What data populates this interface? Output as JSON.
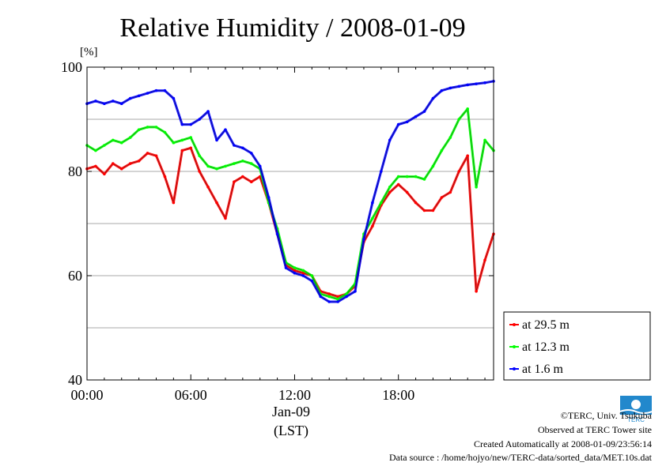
{
  "chart_data": {
    "type": "line",
    "title": "Relative Humidity / 2008-01-09",
    "ylabel": "[%]",
    "xlabel_date": "Jan-09",
    "xlabel_tz": "(LST)",
    "x_unit": "hour (LST)",
    "xlim": [
      0,
      23.5
    ],
    "ylim": [
      40,
      100
    ],
    "x_ticks": [
      0,
      6,
      12,
      18
    ],
    "x_tick_labels": [
      "00:00",
      "06:00",
      "12:00",
      "18:00"
    ],
    "y_ticks": [
      40,
      60,
      80,
      100
    ],
    "y_tick_labels": [
      "40",
      "60",
      "80",
      "100"
    ],
    "grid": true,
    "legend_position": "right, below plot",
    "series": [
      {
        "name": "at 29.5 m",
        "color": "#ff0000",
        "x": [
          0,
          0.5,
          1,
          1.5,
          2,
          2.5,
          3,
          3.5,
          4,
          4.5,
          5,
          5.5,
          6,
          6.5,
          7,
          7.5,
          8,
          8.5,
          9,
          9.5,
          10,
          10.5,
          11,
          11.5,
          12,
          12.5,
          13,
          13.5,
          14,
          14.5,
          15,
          15.5,
          16,
          16.5,
          17,
          17.5,
          18,
          18.5,
          19,
          19.5,
          20,
          20.5,
          21,
          21.5,
          22,
          22.5,
          23,
          23.5
        ],
        "values": [
          80.5,
          81,
          79.5,
          81.5,
          80.5,
          81.5,
          82,
          83.5,
          83,
          79,
          74,
          84,
          84.5,
          80,
          77,
          74,
          71,
          78,
          79,
          78,
          79,
          74,
          68,
          62,
          61,
          60.5,
          60,
          57,
          56.5,
          56,
          56.5,
          58,
          66.5,
          69.5,
          73.5,
          76,
          77.5,
          76,
          74,
          72.5,
          72.5,
          75,
          76,
          80,
          83,
          57,
          63,
          68
        ]
      },
      {
        "name": "at 12.3 m",
        "color": "#00ff00",
        "x": [
          0,
          0.5,
          1,
          1.5,
          2,
          2.5,
          3,
          3.5,
          4,
          4.5,
          5,
          5.5,
          6,
          6.5,
          7,
          7.5,
          8,
          8.5,
          9,
          9.5,
          10,
          10.5,
          11,
          11.5,
          12,
          12.5,
          13,
          13.5,
          14,
          14.5,
          15,
          15.5,
          16,
          16.5,
          17,
          17.5,
          18,
          18.5,
          19,
          19.5,
          20,
          20.5,
          21,
          21.5,
          22,
          22.5,
          23,
          23.5
        ],
        "values": [
          85,
          84,
          85,
          86,
          85.5,
          86.5,
          88,
          88.5,
          88.5,
          87.5,
          85.5,
          86,
          86.5,
          83,
          81,
          80.5,
          81,
          81.5,
          82,
          81.5,
          80.5,
          74,
          69,
          62.5,
          61.5,
          61,
          60,
          56.5,
          56,
          55.5,
          56.5,
          58.5,
          68,
          71,
          74,
          77,
          79,
          79,
          79,
          78.5,
          81,
          84,
          86.5,
          90,
          92,
          77,
          86,
          84
        ]
      },
      {
        "name": "at 1.6 m",
        "color": "#0000ff",
        "x": [
          0,
          0.5,
          1,
          1.5,
          2,
          2.5,
          3,
          3.5,
          4,
          4.5,
          5,
          5.5,
          6,
          6.5,
          7,
          7.5,
          8,
          8.5,
          9,
          9.5,
          10,
          10.5,
          11,
          11.5,
          12,
          12.5,
          13,
          13.5,
          14,
          14.5,
          15,
          15.5,
          16,
          16.5,
          17,
          17.5,
          18,
          18.5,
          19,
          19.5,
          20,
          20.5,
          21,
          21.5,
          22,
          22.5,
          23,
          23.5
        ],
        "values": [
          93,
          93.5,
          93,
          93.5,
          93,
          94,
          94.5,
          95,
          95.5,
          95.5,
          94,
          89,
          89,
          90,
          91.5,
          86,
          88,
          85,
          84.5,
          83.5,
          81,
          75,
          68,
          61.5,
          60.5,
          60,
          59,
          56,
          55,
          55,
          56,
          57,
          67,
          74,
          80,
          86,
          89,
          89.5,
          90.5,
          91.5,
          94,
          95.5,
          96,
          96.3,
          96.6,
          96.8,
          97,
          97.3
        ]
      }
    ]
  },
  "footer": {
    "copyright": "©TERC, Univ. Tsukuba",
    "observed": "Observed at TERC Tower site",
    "created": "Created Automatically at 2008-01-09/23:56:14",
    "source": "Data source : /home/hojyo/new/TERC-data/sorted_data/MET.10s.dat"
  },
  "logo": {
    "text": "TERC",
    "color": "#2288cc"
  }
}
